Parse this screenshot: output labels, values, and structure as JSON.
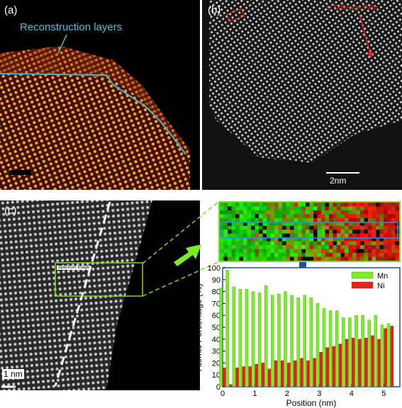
{
  "panels": {
    "a": {
      "label": "(a)",
      "annotation": "Reconstruction layers"
    },
    "b": {
      "label": "(b)",
      "annotation": "Li Diffusion Path",
      "scalebar": "2nm"
    },
    "c": {
      "label": "(c)",
      "annotation": "Spectrum Image",
      "scalebar": "1 nm"
    }
  },
  "colors": {
    "mn": "#7cec28",
    "ni": "#e8211a",
    "highlight": "#1e90ff",
    "frame": "#7cd82b",
    "layer_line": "#4fb3c8"
  },
  "chart_data": {
    "type": "bar",
    "xlabel": "Position (nm)",
    "ylabel": "Atomic Percentage (%)",
    "xlim": [
      0,
      5.5
    ],
    "ylim": [
      0,
      100
    ],
    "xticks": [
      0,
      1,
      2,
      3,
      4,
      5
    ],
    "yticks": [
      0,
      10,
      20,
      30,
      40,
      50,
      60,
      70,
      80,
      90,
      100
    ],
    "legend_position": "top-right",
    "x": [
      0,
      0.2,
      0.4,
      0.6,
      0.8,
      1.0,
      1.2,
      1.4,
      1.6,
      1.8,
      2.0,
      2.2,
      2.4,
      2.6,
      2.8,
      3.0,
      3.2,
      3.4,
      3.6,
      3.8,
      4.0,
      4.2,
      4.4,
      4.6,
      4.8,
      5.0,
      5.2
    ],
    "series": [
      {
        "name": "Mn",
        "values": [
          83,
          98,
          84,
          82,
          82,
          80,
          79,
          85,
          77,
          78,
          80,
          77,
          75,
          77,
          75,
          70,
          66,
          64,
          64,
          58,
          58,
          60,
          60,
          56,
          60,
          52,
          53
        ]
      },
      {
        "name": "Ni",
        "values": [
          16,
          2,
          16,
          17,
          17,
          19,
          20,
          15,
          22,
          22,
          20,
          22,
          24,
          22,
          24,
          29,
          33,
          34,
          36,
          40,
          41,
          40,
          41,
          43,
          40,
          49,
          51
        ]
      }
    ]
  }
}
